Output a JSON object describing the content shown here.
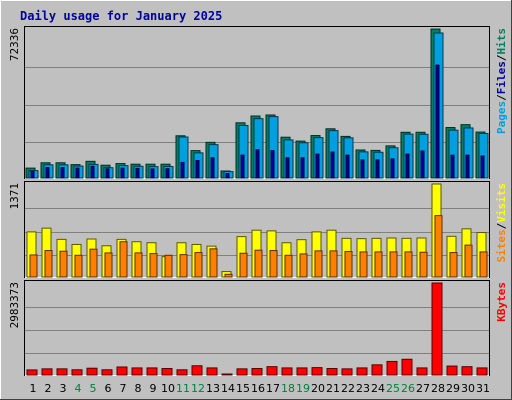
{
  "title": "Daily usage for January 2025",
  "colors": {
    "background": "#c0c0c0",
    "title": "#0000a0",
    "hits": "#008060",
    "files": "#0000a0",
    "pages": "#00a0e0",
    "visits": "#ffff00",
    "sites": "#ff8000",
    "kbytes": "#ff0000",
    "weekend": "#008040",
    "weekday": "#000000"
  },
  "chart_data": [
    {
      "type": "bar",
      "panel": "top",
      "y_max_label": "72336",
      "right_labels": [
        {
          "text": "Pages",
          "color": "#00a0e0"
        },
        {
          "text": "/",
          "color": "#000000"
        },
        {
          "text": "Files",
          "color": "#0000a0"
        },
        {
          "text": "/",
          "color": "#000000"
        },
        {
          "text": "Hits",
          "color": "#008060"
        }
      ],
      "ylim": [
        0,
        72336
      ],
      "categories": [
        "1",
        "2",
        "3",
        "4",
        "5",
        "6",
        "7",
        "8",
        "9",
        "10",
        "11",
        "12",
        "13",
        "14",
        "15",
        "16",
        "17",
        "18",
        "19",
        "20",
        "21",
        "22",
        "23",
        "24",
        "25",
        "26",
        "27",
        "28",
        "29",
        "30",
        "31"
      ],
      "series": [
        {
          "name": "Hits",
          "values": [
            4800,
            7400,
            7400,
            6500,
            8100,
            6200,
            7000,
            6700,
            6700,
            6700,
            20500,
            13300,
            17300,
            3400,
            26800,
            30100,
            30600,
            19800,
            17900,
            20600,
            23900,
            20200,
            13600,
            13400,
            15600,
            22200,
            22200,
            72300,
            24500,
            25900,
            22300
          ]
        },
        {
          "name": "Files",
          "values": [
            3200,
            5100,
            5100,
            4800,
            5700,
            4400,
            4800,
            4700,
            4400,
            4500,
            7600,
            8500,
            9800,
            2200,
            11100,
            13700,
            13300,
            9800,
            9800,
            11600,
            12600,
            11100,
            8800,
            8800,
            9300,
            11600,
            13100,
            54800,
            11100,
            11100,
            10700
          ]
        },
        {
          "name": "Pages",
          "values": [
            3600,
            6400,
            6400,
            5800,
            6600,
            5000,
            6000,
            5700,
            5500,
            5600,
            19900,
            12200,
            16200,
            3100,
            25500,
            28800,
            29800,
            18500,
            17100,
            19600,
            23000,
            19500,
            12700,
            12500,
            14700,
            21300,
            21200,
            70400,
            23200,
            24300,
            21600
          ]
        }
      ]
    },
    {
      "type": "bar",
      "panel": "middle",
      "y_max_label": "1371",
      "right_labels": [
        {
          "text": "Sites",
          "color": "#ff8000"
        },
        {
          "text": "/",
          "color": "#000000"
        },
        {
          "text": "Visits",
          "color": "#ffff00"
        }
      ],
      "ylim": [
        0,
        1371
      ],
      "categories": [
        "1",
        "2",
        "3",
        "4",
        "5",
        "6",
        "7",
        "8",
        "9",
        "10",
        "11",
        "12",
        "13",
        "14",
        "15",
        "16",
        "17",
        "18",
        "19",
        "20",
        "21",
        "22",
        "23",
        "24",
        "25",
        "26",
        "27",
        "28",
        "29",
        "30",
        "31"
      ],
      "series": [
        {
          "name": "Visits",
          "values": [
            665,
            720,
            555,
            480,
            560,
            460,
            555,
            520,
            505,
            300,
            505,
            480,
            455,
            80,
            595,
            690,
            680,
            505,
            550,
            665,
            690,
            570,
            565,
            570,
            575,
            570,
            575,
            1371,
            600,
            710,
            655
          ]
        },
        {
          "name": "Sites",
          "values": [
            325,
            390,
            380,
            320,
            410,
            355,
            520,
            355,
            345,
            320,
            330,
            360,
            415,
            40,
            350,
            395,
            390,
            320,
            340,
            385,
            385,
            375,
            370,
            370,
            370,
            370,
            365,
            905,
            360,
            470,
            370
          ]
        }
      ]
    },
    {
      "type": "bar",
      "panel": "bottom",
      "y_max_label": "2983373",
      "right_labels": [
        {
          "text": "KBytes",
          "color": "#ff0000"
        }
      ],
      "ylim": [
        0,
        2983373
      ],
      "categories": [
        "1",
        "2",
        "3",
        "4",
        "5",
        "6",
        "7",
        "8",
        "9",
        "10",
        "11",
        "12",
        "13",
        "14",
        "15",
        "16",
        "17",
        "18",
        "19",
        "20",
        "21",
        "22",
        "23",
        "24",
        "25",
        "26",
        "27",
        "28",
        "29",
        "30",
        "31"
      ],
      "series": [
        {
          "name": "KBytes",
          "values": [
            165000,
            200000,
            200000,
            170000,
            220000,
            170000,
            260000,
            230000,
            230000,
            210000,
            170000,
            300000,
            230000,
            15000,
            200000,
            210000,
            270000,
            230000,
            230000,
            240000,
            210000,
            200000,
            230000,
            330000,
            440000,
            510000,
            230000,
            2983373,
            290000,
            270000,
            230000
          ]
        }
      ]
    }
  ],
  "day_labels": [
    {
      "text": "1",
      "weekend": false
    },
    {
      "text": "2",
      "weekend": false
    },
    {
      "text": "3",
      "weekend": false
    },
    {
      "text": "4",
      "weekend": true
    },
    {
      "text": "5",
      "weekend": true
    },
    {
      "text": "6",
      "weekend": false
    },
    {
      "text": "7",
      "weekend": false
    },
    {
      "text": "8",
      "weekend": false
    },
    {
      "text": "9",
      "weekend": false
    },
    {
      "text": "10",
      "weekend": false
    },
    {
      "text": "11",
      "weekend": true
    },
    {
      "text": "12",
      "weekend": true
    },
    {
      "text": "13",
      "weekend": false
    },
    {
      "text": "14",
      "weekend": false
    },
    {
      "text": "15",
      "weekend": false
    },
    {
      "text": "16",
      "weekend": false
    },
    {
      "text": "17",
      "weekend": false
    },
    {
      "text": "18",
      "weekend": true
    },
    {
      "text": "19",
      "weekend": true
    },
    {
      "text": "20",
      "weekend": false
    },
    {
      "text": "21",
      "weekend": false
    },
    {
      "text": "22",
      "weekend": false
    },
    {
      "text": "23",
      "weekend": false
    },
    {
      "text": "24",
      "weekend": false
    },
    {
      "text": "25",
      "weekend": true
    },
    {
      "text": "26",
      "weekend": true
    },
    {
      "text": "27",
      "weekend": false
    },
    {
      "text": "28",
      "weekend": false
    },
    {
      "text": "29",
      "weekend": false
    },
    {
      "text": "30",
      "weekend": false
    },
    {
      "text": "31",
      "weekend": false
    }
  ]
}
